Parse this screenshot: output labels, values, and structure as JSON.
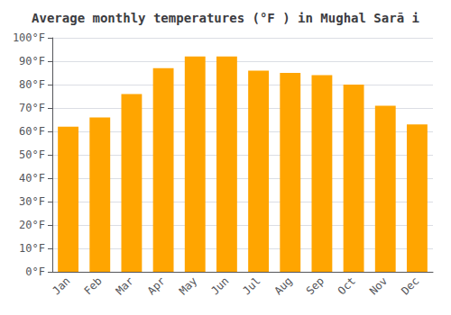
{
  "chart_data": {
    "type": "bar",
    "title": "Average monthly temperatures (°F ) in Mughal Sarā i",
    "categories": [
      "Jan",
      "Feb",
      "Mar",
      "Apr",
      "May",
      "Jun",
      "Jul",
      "Aug",
      "Sep",
      "Oct",
      "Nov",
      "Dec"
    ],
    "values": [
      62,
      66,
      76,
      87,
      92,
      92,
      86,
      85,
      84,
      80,
      71,
      63
    ],
    "color": "#FFA500",
    "ylim": [
      0,
      100
    ],
    "yticks": [
      {
        "value": 0,
        "label": "0°F"
      },
      {
        "value": 10,
        "label": "10°F"
      },
      {
        "value": 20,
        "label": "20°F"
      },
      {
        "value": 30,
        "label": "30°F"
      },
      {
        "value": 40,
        "label": "40°F"
      },
      {
        "value": 50,
        "label": "50°F"
      },
      {
        "value": 60,
        "label": "60°F"
      },
      {
        "value": 70,
        "label": "70°F"
      },
      {
        "value": 80,
        "label": "80°F"
      },
      {
        "value": 90,
        "label": "90°F"
      },
      {
        "value": 100,
        "label": "100°F"
      }
    ],
    "grid": true
  }
}
